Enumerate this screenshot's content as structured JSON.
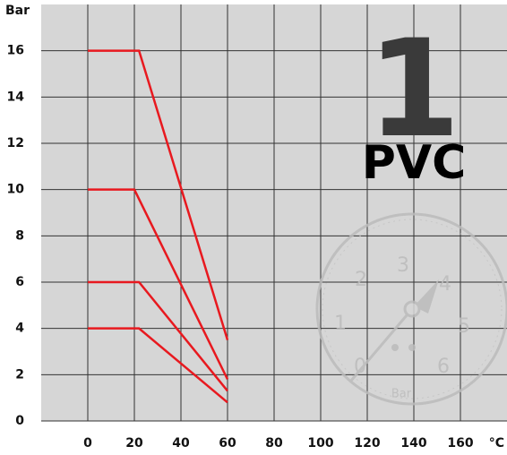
{
  "chart_data": {
    "type": "line",
    "y_label": "Bar",
    "x_label": "°C",
    "annotations": [
      "1",
      "PVC"
    ],
    "series": [
      {
        "color": "#e8191f",
        "x": [
          0,
          22,
          60
        ],
        "values": [
          16,
          16,
          3.5
        ]
      },
      {
        "color": "#e8191f",
        "x": [
          0,
          20,
          60
        ],
        "values": [
          10,
          10,
          1.8
        ]
      },
      {
        "color": "#e8191f",
        "x": [
          0,
          22,
          60
        ],
        "values": [
          6,
          6,
          1.3
        ]
      },
      {
        "color": "#e8191f",
        "x": [
          0,
          22,
          60
        ],
        "values": [
          4,
          4,
          0.8
        ]
      }
    ],
    "xlim": [
      -20,
      180
    ],
    "ylim": [
      0,
      18
    ],
    "xticks": [
      0,
      20,
      40,
      60,
      80,
      100,
      120,
      140,
      160
    ],
    "yticks": [
      0,
      2,
      4,
      6,
      8,
      10,
      12,
      14,
      16
    ],
    "grid": true,
    "gauge": {
      "labels": [
        "0",
        "1",
        "2",
        "3",
        "4",
        "5",
        "6"
      ],
      "unit": "Bar"
    }
  }
}
